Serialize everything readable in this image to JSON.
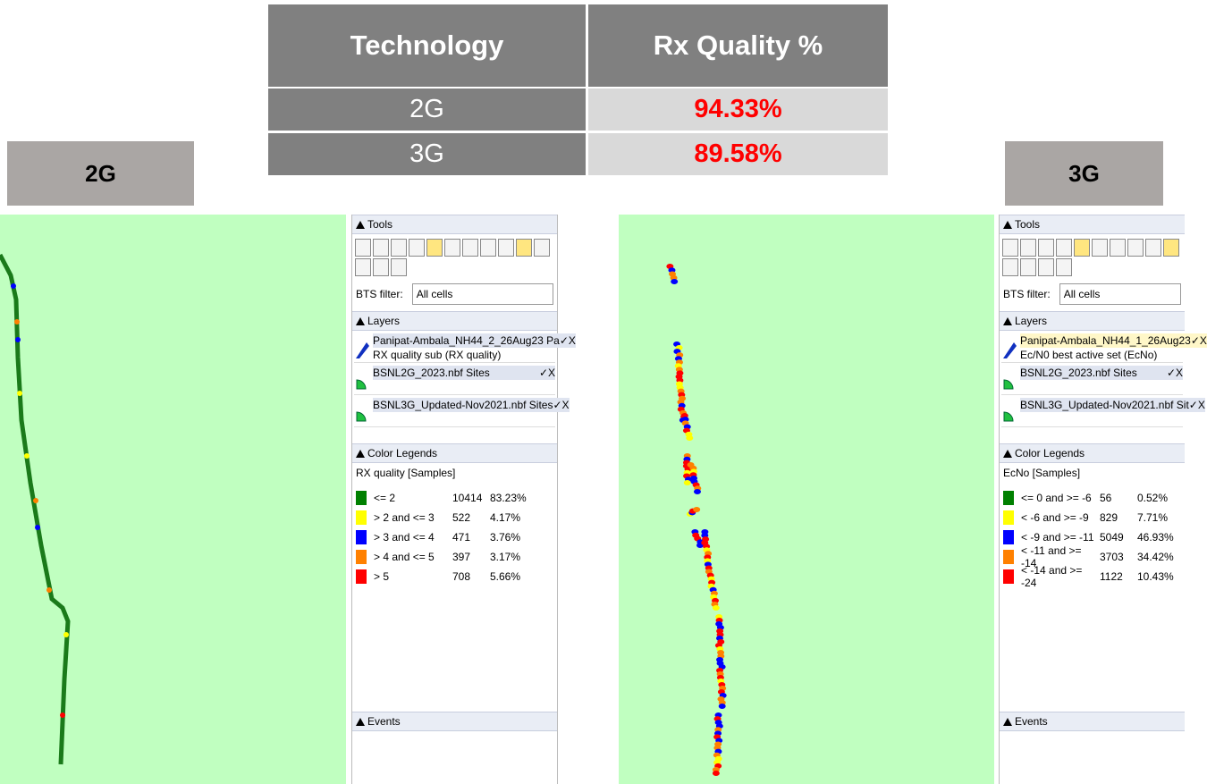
{
  "table": {
    "headers": [
      "Technology",
      "Rx Quality %"
    ],
    "rows": [
      [
        "2G",
        "94.33%"
      ],
      [
        "3G",
        "89.58%"
      ]
    ]
  },
  "labels": [
    "2G",
    "3G"
  ],
  "panels": [
    {
      "tools_title": "Tools",
      "bts_filter_label": "BTS filter:",
      "bts_filter_value": "All cells",
      "layers_title": "Layers",
      "layers": [
        {
          "name": "Panipat-Ambala_NH44_2_26Aug23 Pa",
          "sub": "RX quality sub (RX quality)",
          "controls": "✓X"
        },
        {
          "name": "BSNL2G_2023.nbf Sites",
          "controls": "✓X"
        },
        {
          "name": "BSNL3G_Updated-Nov2021.nbf Sites",
          "controls": "✓X"
        }
      ],
      "legends_title": "Color Legends",
      "legend_name": "RX quality [Samples]",
      "legend": [
        {
          "label": "<= 2",
          "count": "10414",
          "percent": "83.23%",
          "color": "#008000"
        },
        {
          "label": "> 2 and <= 3",
          "count": "522",
          "percent": "4.17%",
          "color": "#ffff00"
        },
        {
          "label": "> 3 and <= 4",
          "count": "471",
          "percent": "3.76%",
          "color": "#0000ff"
        },
        {
          "label": "> 4 and <= 5",
          "count": "397",
          "percent": "3.17%",
          "color": "#ff8000"
        },
        {
          "label": "> 5",
          "count": "708",
          "percent": "5.66%",
          "color": "#ff0000"
        }
      ],
      "events_title": "Events"
    },
    {
      "tools_title": "Tools",
      "bts_filter_label": "BTS filter:",
      "bts_filter_value": "All cells",
      "layers_title": "Layers",
      "layers": [
        {
          "name": "Panipat-Ambala_NH44_1_26Aug23",
          "sub": "Ec/N0 best active set (EcNo)",
          "controls": "✓X"
        },
        {
          "name": "BSNL2G_2023.nbf Sites",
          "controls": "✓X"
        },
        {
          "name": "BSNL3G_Updated-Nov2021.nbf Sit",
          "controls": "✓X"
        }
      ],
      "legends_title": "Color Legends",
      "legend_name": "EcNo [Samples]",
      "legend": [
        {
          "label": "<= 0 and >= -6",
          "count": "56",
          "percent": "0.52%",
          "color": "#008000"
        },
        {
          "label": "< -6 and >= -9",
          "count": "829",
          "percent": "7.71%",
          "color": "#ffff00"
        },
        {
          "label": "< -9 and >= -11",
          "count": "5049",
          "percent": "46.93%",
          "color": "#0000ff"
        },
        {
          "label": "< -11 and >= -14",
          "count": "3703",
          "percent": "34.42%",
          "color": "#ff8000"
        },
        {
          "label": "< -14 and >= -24",
          "count": "1122",
          "percent": "10.43%",
          "color": "#ff0000"
        }
      ],
      "events_title": "Events"
    }
  ]
}
